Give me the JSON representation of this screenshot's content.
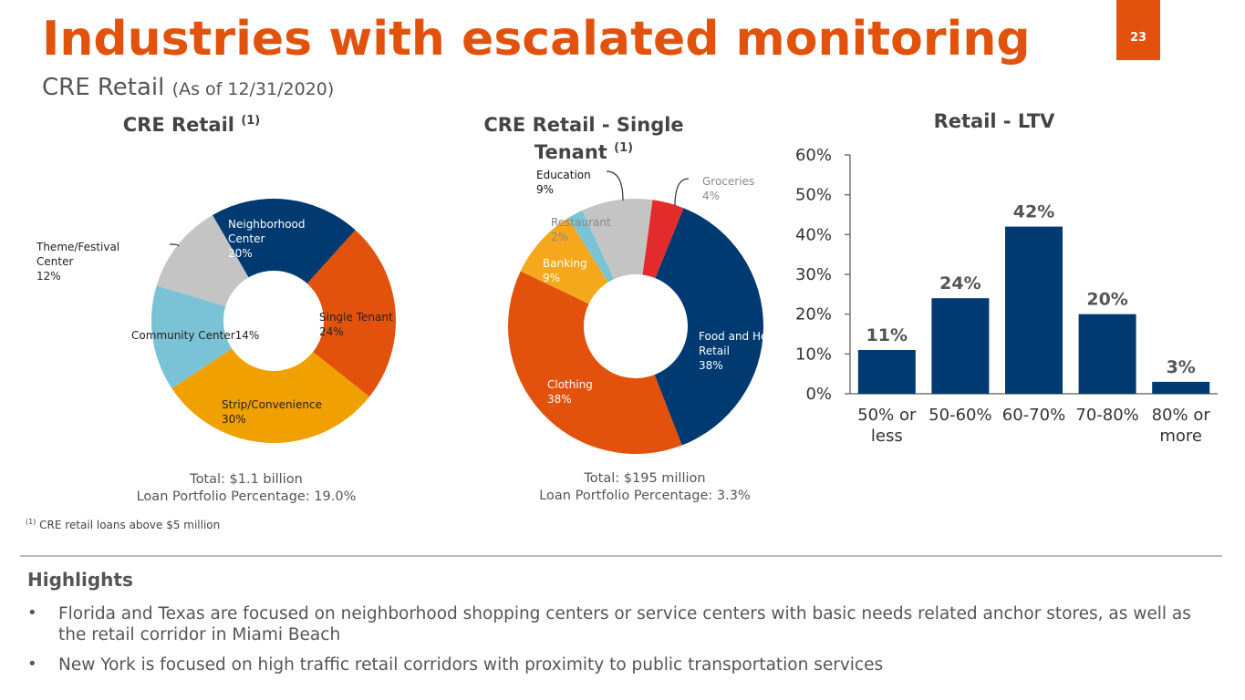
{
  "page": {
    "title": "Industries with escalated monitoring",
    "page_number": "23",
    "subtitle": "CRE Retail",
    "subtitle_note": "(As of 12/31/2020)"
  },
  "chart_data": [
    {
      "type": "donut",
      "title": "CRE Retail",
      "title_note": "(1)",
      "categories": [
        "Neighborhood Center",
        "Single Tenant",
        "Strip/Convenience",
        "Community Center",
        "Theme/Festival Center"
      ],
      "values": [
        20,
        24,
        30,
        14,
        12
      ],
      "value_labels": [
        "20%",
        "24%",
        "30%",
        "14%",
        "12%"
      ],
      "colors": [
        "#003a70",
        "#e2520c",
        "#f0a000",
        "#7ac3d6",
        "#c4c4c4"
      ],
      "notes": [
        "Total: $1.1 billion",
        "Loan Portfolio Percentage: 19.0%"
      ]
    },
    {
      "type": "donut",
      "title": "CRE Retail - Single Tenant",
      "title_note": "(1)",
      "categories": [
        "Food and Health Retail",
        "Clothing",
        "Banking",
        "Restaurant",
        "Education",
        "Groceries"
      ],
      "values": [
        38,
        38,
        9,
        2,
        9,
        4
      ],
      "value_labels": [
        "38%",
        "38%",
        "9%",
        "2%",
        "9%",
        "4%"
      ],
      "colors": [
        "#003a70",
        "#e2520c",
        "#f5a81c",
        "#7ac3d6",
        "#c4c4c4",
        "#e32b2b"
      ],
      "notes": [
        "Total: $195 million",
        "Loan Portfolio Percentage: 3.3%"
      ]
    },
    {
      "type": "bar",
      "title": "Retail - LTV",
      "categories": [
        "50% or less",
        "50-60%",
        "60-70%",
        "70-80%",
        "80% or more"
      ],
      "values": [
        11,
        24,
        42,
        20,
        3
      ],
      "value_labels": [
        "11%",
        "24%",
        "42%",
        "20%",
        "3%"
      ],
      "color": "#003a70",
      "ylim": [
        0,
        60
      ],
      "yticks": [
        {
          "value": 0,
          "label": "0%"
        },
        {
          "value": 10,
          "label": "10%"
        },
        {
          "value": 20,
          "label": "20%"
        },
        {
          "value": 30,
          "label": "30%"
        },
        {
          "value": 40,
          "label": "40%"
        },
        {
          "value": 50,
          "label": "50%"
        },
        {
          "value": 60,
          "label": "60%"
        }
      ]
    }
  ],
  "footnote": {
    "marker": "(1)",
    "text": "CRE retail loans above $5 million"
  },
  "highlights": {
    "title": "Highlights",
    "items": [
      "Florida and Texas are focused on neighborhood shopping centers or service centers with basic needs related anchor stores, as well as the retail corridor in Miami Beach",
      "New York is focused on high traffic retail corridors with proximity to public transportation services"
    ]
  }
}
